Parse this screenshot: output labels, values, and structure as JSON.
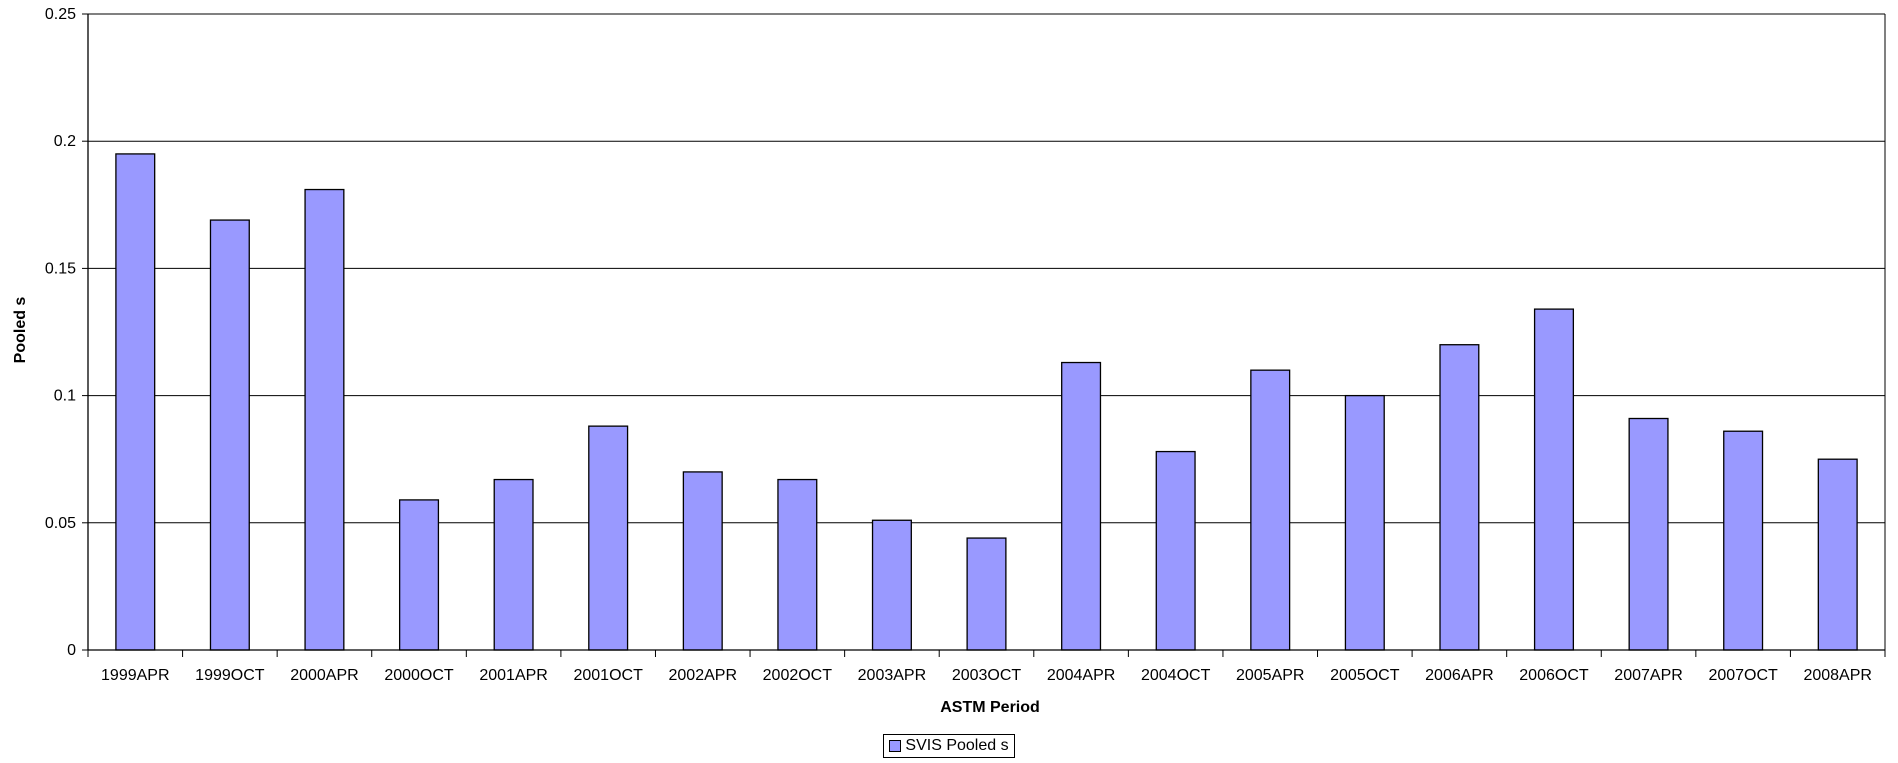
{
  "chart_data": {
    "type": "bar",
    "xlabel": "ASTM Period",
    "ylabel": "Pooled s",
    "ylim": [
      0,
      0.25
    ],
    "yticks": [
      "0",
      "0.05",
      "0.1",
      "0.15",
      "0.2",
      "0.25"
    ],
    "grid": true,
    "legend_position": "bottom",
    "bar_color": "#9999ff",
    "categories": [
      "1999APR",
      "1999OCT",
      "2000APR",
      "2000OCT",
      "2001APR",
      "2001OCT",
      "2002APR",
      "2002OCT",
      "2003APR",
      "2003OCT",
      "2004APR",
      "2004OCT",
      "2005APR",
      "2005OCT",
      "2006APR",
      "2006OCT",
      "2007APR",
      "2007OCT",
      "2008APR"
    ],
    "series": [
      {
        "name": "SVIS Pooled s",
        "values": [
          0.195,
          0.169,
          0.181,
          0.059,
          0.067,
          0.088,
          0.07,
          0.067,
          0.051,
          0.044,
          0.113,
          0.078,
          0.11,
          0.1,
          0.12,
          0.134,
          0.091,
          0.086,
          0.075
        ]
      }
    ]
  }
}
